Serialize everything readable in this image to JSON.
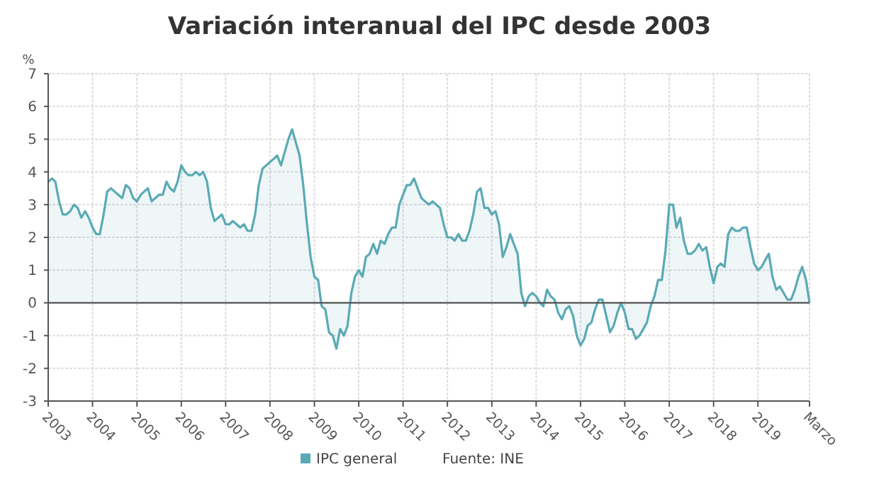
{
  "chart_data": {
    "type": "area",
    "title": "Variación interanual del IPC desde 2003",
    "ylabel": "%",
    "x": [
      "2003-01",
      "2003-02",
      "2003-03",
      "2003-04",
      "2003-05",
      "2003-06",
      "2003-07",
      "2003-08",
      "2003-09",
      "2003-10",
      "2003-11",
      "2003-12",
      "2004-01",
      "2004-02",
      "2004-03",
      "2004-04",
      "2004-05",
      "2004-06",
      "2004-07",
      "2004-08",
      "2004-09",
      "2004-10",
      "2004-11",
      "2004-12",
      "2005-01",
      "2005-02",
      "2005-03",
      "2005-04",
      "2005-05",
      "2005-06",
      "2005-07",
      "2005-08",
      "2005-09",
      "2005-10",
      "2005-11",
      "2005-12",
      "2006-01",
      "2006-02",
      "2006-03",
      "2006-04",
      "2006-05",
      "2006-06",
      "2006-07",
      "2006-08",
      "2006-09",
      "2006-10",
      "2006-11",
      "2006-12",
      "2007-01",
      "2007-02",
      "2007-03",
      "2007-04",
      "2007-05",
      "2007-06",
      "2007-07",
      "2007-08",
      "2007-09",
      "2007-10",
      "2007-11",
      "2007-12",
      "2008-01",
      "2008-02",
      "2008-03",
      "2008-04",
      "2008-05",
      "2008-06",
      "2008-07",
      "2008-08",
      "2008-09",
      "2008-10",
      "2008-11",
      "2008-12",
      "2009-01",
      "2009-02",
      "2009-03",
      "2009-04",
      "2009-05",
      "2009-06",
      "2009-07",
      "2009-08",
      "2009-09",
      "2009-10",
      "2009-11",
      "2009-12",
      "2010-01",
      "2010-02",
      "2010-03",
      "2010-04",
      "2010-05",
      "2010-06",
      "2010-07",
      "2010-08",
      "2010-09",
      "2010-10",
      "2010-11",
      "2010-12",
      "2011-01",
      "2011-02",
      "2011-03",
      "2011-04",
      "2011-05",
      "2011-06",
      "2011-07",
      "2011-08",
      "2011-09",
      "2011-10",
      "2011-11",
      "2011-12",
      "2012-01",
      "2012-02",
      "2012-03",
      "2012-04",
      "2012-05",
      "2012-06",
      "2012-07",
      "2012-08",
      "2012-09",
      "2012-10",
      "2012-11",
      "2012-12",
      "2013-01",
      "2013-02",
      "2013-03",
      "2013-04",
      "2013-05",
      "2013-06",
      "2013-07",
      "2013-08",
      "2013-09",
      "2013-10",
      "2013-11",
      "2013-12",
      "2014-01",
      "2014-02",
      "2014-03",
      "2014-04",
      "2014-05",
      "2014-06",
      "2014-07",
      "2014-08",
      "2014-09",
      "2014-10",
      "2014-11",
      "2014-12",
      "2015-01",
      "2015-02",
      "2015-03",
      "2015-04",
      "2015-05",
      "2015-06",
      "2015-07",
      "2015-08",
      "2015-09",
      "2015-10",
      "2015-11",
      "2015-12",
      "2016-01",
      "2016-02",
      "2016-03",
      "2016-04",
      "2016-05",
      "2016-06",
      "2016-07",
      "2016-08",
      "2016-09",
      "2016-10",
      "2016-11",
      "2016-12",
      "2017-01",
      "2017-02",
      "2017-03",
      "2017-04",
      "2017-05",
      "2017-06",
      "2017-07",
      "2017-08",
      "2017-09",
      "2017-10",
      "2017-11",
      "2017-12",
      "2018-01",
      "2018-02",
      "2018-03",
      "2018-04",
      "2018-05",
      "2018-06",
      "2018-07",
      "2018-08",
      "2018-09",
      "2018-10",
      "2018-11",
      "2018-12",
      "2019-01",
      "2019-02",
      "2019-03",
      "2019-04",
      "2019-05",
      "2019-06",
      "2019-07",
      "2019-08",
      "2019-09",
      "2019-10",
      "2019-11",
      "2019-12",
      "2020-01",
      "2020-02",
      "2020-03"
    ],
    "series": [
      {
        "name": "IPC general",
        "color": "#5aaab5",
        "values": [
          3.7,
          3.8,
          3.7,
          3.1,
          2.7,
          2.7,
          2.8,
          3.0,
          2.9,
          2.6,
          2.8,
          2.6,
          2.3,
          2.1,
          2.1,
          2.7,
          3.4,
          3.5,
          3.4,
          3.3,
          3.2,
          3.6,
          3.5,
          3.2,
          3.1,
          3.3,
          3.4,
          3.5,
          3.1,
          3.2,
          3.3,
          3.3,
          3.7,
          3.5,
          3.4,
          3.7,
          4.2,
          4.0,
          3.9,
          3.9,
          4.0,
          3.9,
          4.0,
          3.7,
          2.9,
          2.5,
          2.6,
          2.7,
          2.4,
          2.4,
          2.5,
          2.4,
          2.3,
          2.4,
          2.2,
          2.2,
          2.7,
          3.6,
          4.1,
          4.2,
          4.3,
          4.4,
          4.5,
          4.2,
          4.6,
          5.0,
          5.3,
          4.9,
          4.5,
          3.6,
          2.4,
          1.4,
          0.8,
          0.7,
          -0.1,
          -0.2,
          -0.9,
          -1.0,
          -1.4,
          -0.8,
          -1.0,
          -0.7,
          0.3,
          0.8,
          1.0,
          0.8,
          1.4,
          1.5,
          1.8,
          1.5,
          1.9,
          1.8,
          2.1,
          2.3,
          2.3,
          3.0,
          3.3,
          3.6,
          3.6,
          3.8,
          3.5,
          3.2,
          3.1,
          3.0,
          3.1,
          3.0,
          2.9,
          2.4,
          2.0,
          2.0,
          1.9,
          2.1,
          1.9,
          1.9,
          2.2,
          2.7,
          3.4,
          3.5,
          2.9,
          2.9,
          2.7,
          2.8,
          2.4,
          1.4,
          1.7,
          2.1,
          1.8,
          1.5,
          0.3,
          -0.1,
          0.2,
          0.3,
          0.2,
          0.0,
          -0.1,
          0.4,
          0.2,
          0.1,
          -0.3,
          -0.5,
          -0.2,
          -0.1,
          -0.4,
          -1.0,
          -1.3,
          -1.1,
          -0.7,
          -0.6,
          -0.2,
          0.1,
          0.1,
          -0.4,
          -0.9,
          -0.7,
          -0.3,
          0.0,
          -0.3,
          -0.8,
          -0.8,
          -1.1,
          -1.0,
          -0.8,
          -0.6,
          -0.1,
          0.2,
          0.7,
          0.7,
          1.6,
          3.0,
          3.0,
          2.3,
          2.6,
          1.9,
          1.5,
          1.5,
          1.6,
          1.8,
          1.6,
          1.7,
          1.1,
          0.6,
          1.1,
          1.2,
          1.1,
          2.1,
          2.3,
          2.2,
          2.2,
          2.3,
          2.3,
          1.7,
          1.2,
          1.0,
          1.1,
          1.3,
          1.5,
          0.8,
          0.4,
          0.5,
          0.3,
          0.1,
          0.1,
          0.4,
          0.8,
          1.1,
          0.7,
          0.0
        ]
      }
    ],
    "xlim": [
      "2003-01",
      "2020-03"
    ],
    "xticks": [
      {
        "value": "2003-01",
        "label": "2003"
      },
      {
        "value": "2004-01",
        "label": "2004"
      },
      {
        "value": "2005-01",
        "label": "2005"
      },
      {
        "value": "2006-01",
        "label": "2006"
      },
      {
        "value": "2007-01",
        "label": "2007"
      },
      {
        "value": "2008-01",
        "label": "2008"
      },
      {
        "value": "2009-01",
        "label": "2009"
      },
      {
        "value": "2010-01",
        "label": "2010"
      },
      {
        "value": "2011-01",
        "label": "2011"
      },
      {
        "value": "2012-01",
        "label": "2012"
      },
      {
        "value": "2013-01",
        "label": "2013"
      },
      {
        "value": "2014-01",
        "label": "2014"
      },
      {
        "value": "2015-01",
        "label": "2015"
      },
      {
        "value": "2016-01",
        "label": "2016"
      },
      {
        "value": "2017-01",
        "label": "2017"
      },
      {
        "value": "2018-01",
        "label": "2018"
      },
      {
        "value": "2019-01",
        "label": "2019"
      },
      {
        "value": "2020-03",
        "label": "Marzo"
      }
    ],
    "ylim": [
      -3,
      7
    ],
    "yticks": [
      -3,
      -2,
      -1,
      0,
      1,
      2,
      3,
      4,
      5,
      6,
      7
    ],
    "ref_lines": [
      {
        "axis": "y",
        "value": 0,
        "color": "#555555"
      }
    ],
    "grid": true,
    "legend": "bottom",
    "annotations": [
      "Fuente: INE"
    ]
  }
}
